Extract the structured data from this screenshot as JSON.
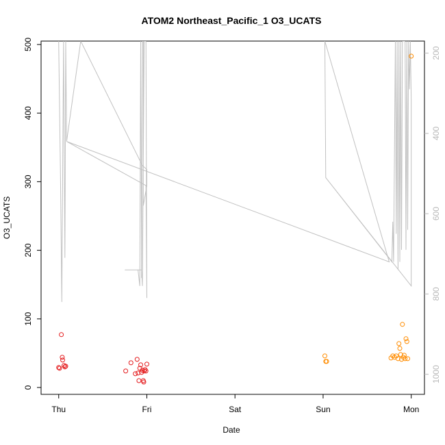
{
  "chart_data": {
    "type": "scatter",
    "title": "ATOM2 Northeast_Pacific_1 O3_UCATS",
    "xlabel": "Date",
    "ylabel": "O3_UCATS",
    "x_ticks": [
      {
        "label": "Thu",
        "day": 0
      },
      {
        "label": "Fri",
        "day": 1
      },
      {
        "label": "Sat",
        "day": 2
      },
      {
        "label": "Sun",
        "day": 3
      },
      {
        "label": "Mon",
        "day": 4
      }
    ],
    "xlim": [
      -0.2,
      4.15
    ],
    "ylim": [
      -10,
      505
    ],
    "y_ticks": [
      0,
      100,
      200,
      300,
      400,
      500
    ],
    "right_axis": {
      "ylim": [
        1050,
        170
      ],
      "ticks": [
        200,
        400,
        600,
        800,
        1000
      ],
      "color": "#b8b8b8"
    },
    "colors": {
      "early": "#e41a1c",
      "late": "#ff8c00",
      "line": "#c0c0c0"
    },
    "series": [
      {
        "color_key": "early",
        "points": [
          [
            0.0,
            29
          ],
          [
            0.01,
            28
          ],
          [
            0.03,
            77
          ],
          [
            0.04,
            44
          ],
          [
            0.045,
            40
          ],
          [
            0.06,
            32
          ],
          [
            0.07,
            30
          ],
          [
            0.08,
            31
          ],
          [
            0.76,
            24
          ],
          [
            0.82,
            36
          ],
          [
            0.87,
            20
          ],
          [
            0.89,
            41
          ],
          [
            0.9,
            21
          ],
          [
            0.91,
            10
          ],
          [
            0.92,
            28
          ],
          [
            0.93,
            33
          ],
          [
            0.94,
            22
          ],
          [
            0.95,
            25
          ],
          [
            0.96,
            10
          ],
          [
            0.965,
            8
          ],
          [
            0.97,
            24
          ],
          [
            0.98,
            26
          ],
          [
            0.99,
            24
          ],
          [
            1.0,
            34
          ]
        ]
      },
      {
        "color_key": "late",
        "points": [
          [
            3.02,
            46
          ],
          [
            3.03,
            38
          ],
          [
            3.04,
            38
          ],
          [
            3.77,
            43
          ],
          [
            3.79,
            46
          ],
          [
            3.81,
            44
          ],
          [
            3.83,
            46
          ],
          [
            3.85,
            42
          ],
          [
            3.86,
            64
          ],
          [
            3.87,
            57
          ],
          [
            3.88,
            48
          ],
          [
            3.89,
            41
          ],
          [
            3.9,
            92
          ],
          [
            3.91,
            44
          ],
          [
            3.92,
            47
          ],
          [
            3.93,
            42
          ],
          [
            3.94,
            71
          ],
          [
            3.95,
            67
          ],
          [
            3.96,
            42
          ],
          [
            4.0,
            483
          ]
        ]
      }
    ],
    "pressure_line": [
      [
        0.0,
        170
      ],
      [
        0.02,
        500
      ],
      [
        0.035,
        820
      ],
      [
        0.055,
        170
      ],
      [
        0.07,
        710
      ],
      [
        0.08,
        170
      ],
      [
        0.09,
        420
      ],
      [
        0.25,
        170
      ],
      [
        0.95,
        480
      ],
      [
        1.0,
        490
      ],
      [
        1.0,
        530
      ],
      [
        0.96,
        580
      ],
      [
        0.96,
        170
      ],
      [
        0.95,
        170
      ],
      [
        0.94,
        760
      ],
      [
        0.93,
        170
      ],
      [
        0.92,
        780
      ],
      [
        0.9,
        740
      ],
      [
        0.75,
        740
      ],
      [
        0.76,
        740
      ],
      [
        0.77,
        740
      ],
      [
        0.78,
        740
      ],
      [
        0.79,
        740
      ],
      [
        0.8,
        740
      ],
      [
        0.81,
        740
      ],
      [
        0.82,
        740
      ],
      [
        0.83,
        740
      ],
      [
        0.84,
        740
      ],
      [
        0.85,
        740
      ],
      [
        0.86,
        740
      ],
      [
        0.87,
        740
      ],
      [
        0.88,
        740
      ],
      [
        0.89,
        740
      ],
      [
        0.9,
        740
      ],
      [
        0.91,
        740
      ],
      [
        0.92,
        740
      ],
      [
        0.93,
        740
      ],
      [
        0.94,
        740
      ],
      [
        0.95,
        780
      ],
      [
        0.97,
        170
      ],
      [
        0.99,
        170
      ],
      [
        1.0,
        810
      ],
      [
        0.99,
        530
      ],
      [
        0.09,
        420
      ],
      [
        3.75,
        720
      ],
      [
        3.02,
        170
      ],
      [
        3.03,
        510
      ],
      [
        3.78,
        720
      ],
      [
        3.79,
        620
      ],
      [
        3.8,
        720
      ],
      [
        3.82,
        170
      ],
      [
        3.83,
        650
      ],
      [
        3.84,
        170
      ],
      [
        3.85,
        740
      ],
      [
        3.86,
        170
      ],
      [
        3.87,
        720
      ],
      [
        3.88,
        170
      ],
      [
        3.89,
        690
      ],
      [
        3.9,
        170
      ],
      [
        3.91,
        170
      ],
      [
        3.92,
        170
      ],
      [
        3.93,
        170
      ],
      [
        3.94,
        690
      ],
      [
        3.95,
        170
      ],
      [
        3.96,
        640
      ],
      [
        3.97,
        170
      ],
      [
        3.98,
        290
      ],
      [
        3.99,
        170
      ],
      [
        4.0,
        320
      ],
      [
        4.0,
        780
      ],
      [
        3.03,
        510
      ]
    ]
  }
}
